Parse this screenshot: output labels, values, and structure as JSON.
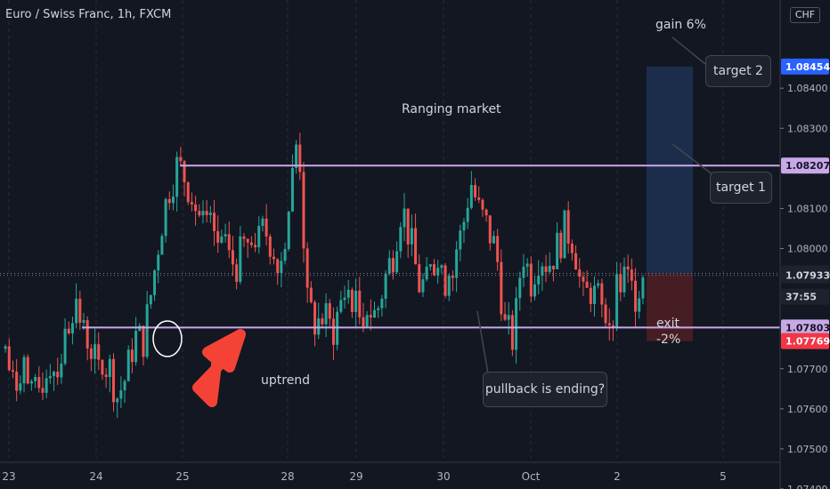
{
  "header": {
    "symbol": "Euro / Swiss Franc, 1h, FXCM",
    "currency": "CHF"
  },
  "annotations": {
    "ranging": "Ranging market",
    "uptrend": "uptrend",
    "gain": "gain 6%",
    "exit": "exit",
    "exit_pct": "-2%",
    "target1": "target 1",
    "target2": "target 2",
    "pullback": "pullback is ending?"
  },
  "colors": {
    "background": "#131722",
    "up": "#26a69a",
    "down": "#ef5350",
    "range_line": "#c9a8e8",
    "profit_zone": "#1c2e4e",
    "loss_zone": "#4a1e25",
    "arrow": "#f44336",
    "badge_blue": "#2962ff",
    "badge_red": "#f23645"
  },
  "chart_data": {
    "type": "candlestick",
    "ylim": [
      1.074,
      1.0862
    ],
    "x_ticks": [
      "23",
      "24",
      "25",
      "28",
      "29",
      "30",
      "Oct",
      "2",
      "5"
    ],
    "y_ticks": [
      "1.08400",
      "1.08300",
      "1.08100",
      "1.08000",
      "1.07700",
      "1.07600",
      "1.07500",
      "1.07400"
    ],
    "price_badges": [
      {
        "label": "1.08454",
        "value": 1.08454,
        "style": "blue"
      },
      {
        "label": "1.08207",
        "value": 1.08207,
        "style": "lavender"
      },
      {
        "label": "1.07938",
        "value": 1.07938,
        "style": "dark"
      },
      {
        "label": "37:55",
        "value": 1.0788,
        "style": "dark"
      },
      {
        "label": "1.07933",
        "value": 1.07933,
        "style": "dark"
      },
      {
        "label": "1.07803",
        "value": 1.07803,
        "style": "lavender"
      },
      {
        "label": "1.07769",
        "value": 1.07769,
        "style": "red"
      }
    ],
    "range_high": 1.08207,
    "range_low": 1.07803,
    "last_price": 1.07938,
    "profit_target": 1.08454,
    "stop_loss": 1.07769,
    "entry": 1.07933,
    "path": [
      1.0775,
      1.0764,
      1.0773,
      1.0762,
      1.0765,
      1.0772,
      1.077,
      1.0778,
      1.0788,
      1.0779,
      1.0776,
      1.0767,
      1.0771,
      1.0763,
      1.0768,
      1.0778,
      1.0777,
      1.079,
      1.0805,
      1.0815,
      1.0821,
      1.0817,
      1.0811,
      1.0805,
      1.0803,
      1.08,
      1.0797,
      1.0796,
      1.0804,
      1.0799,
      1.0805,
      1.0801,
      1.0797,
      1.0812,
      1.083,
      1.0786,
      1.0781,
      1.0783,
      1.0779,
      1.0787,
      1.079,
      1.0783,
      1.0786,
      1.0783,
      1.0792,
      1.0799,
      1.0811,
      1.0802,
      1.0791,
      1.0791,
      1.0799,
      1.0792,
      1.0798,
      1.0804,
      1.0817,
      1.0809,
      1.0805,
      1.0799,
      1.078,
      1.0777,
      1.08,
      1.0792,
      1.0799,
      1.0796,
      1.08,
      1.0805,
      1.0802,
      1.0787,
      1.079,
      1.0785,
      1.0782,
      1.0789,
      1.0793,
      1.0788,
      1.0794
    ]
  }
}
